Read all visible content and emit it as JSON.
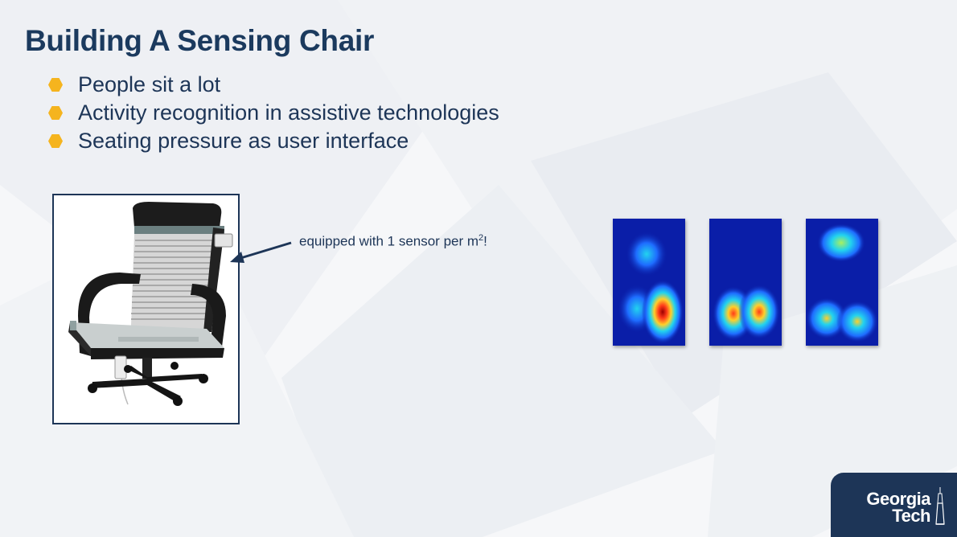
{
  "slide": {
    "title": "Building A Sensing Chair",
    "bullets": [
      "People sit a lot",
      "Activity recognition in assistive technologies",
      "Seating pressure as user interface"
    ]
  },
  "chair_figure": {
    "caption_text": "equipped with 1 sensor per m",
    "caption_sup": "2",
    "caption_suffix": "!"
  },
  "pressure_maps": {
    "count": 3,
    "colormap": [
      "#0a1ea8",
      "#1e6cff",
      "#22d3ee",
      "#a8f060",
      "#ffd02a",
      "#ff3b1a",
      "#9b0000"
    ]
  },
  "logo": {
    "line1": "Georgia",
    "line2": "Tech",
    "background": "#1d3557"
  },
  "colors": {
    "title": "#1b3a5e",
    "bullet_marker": "#f5b41e"
  }
}
